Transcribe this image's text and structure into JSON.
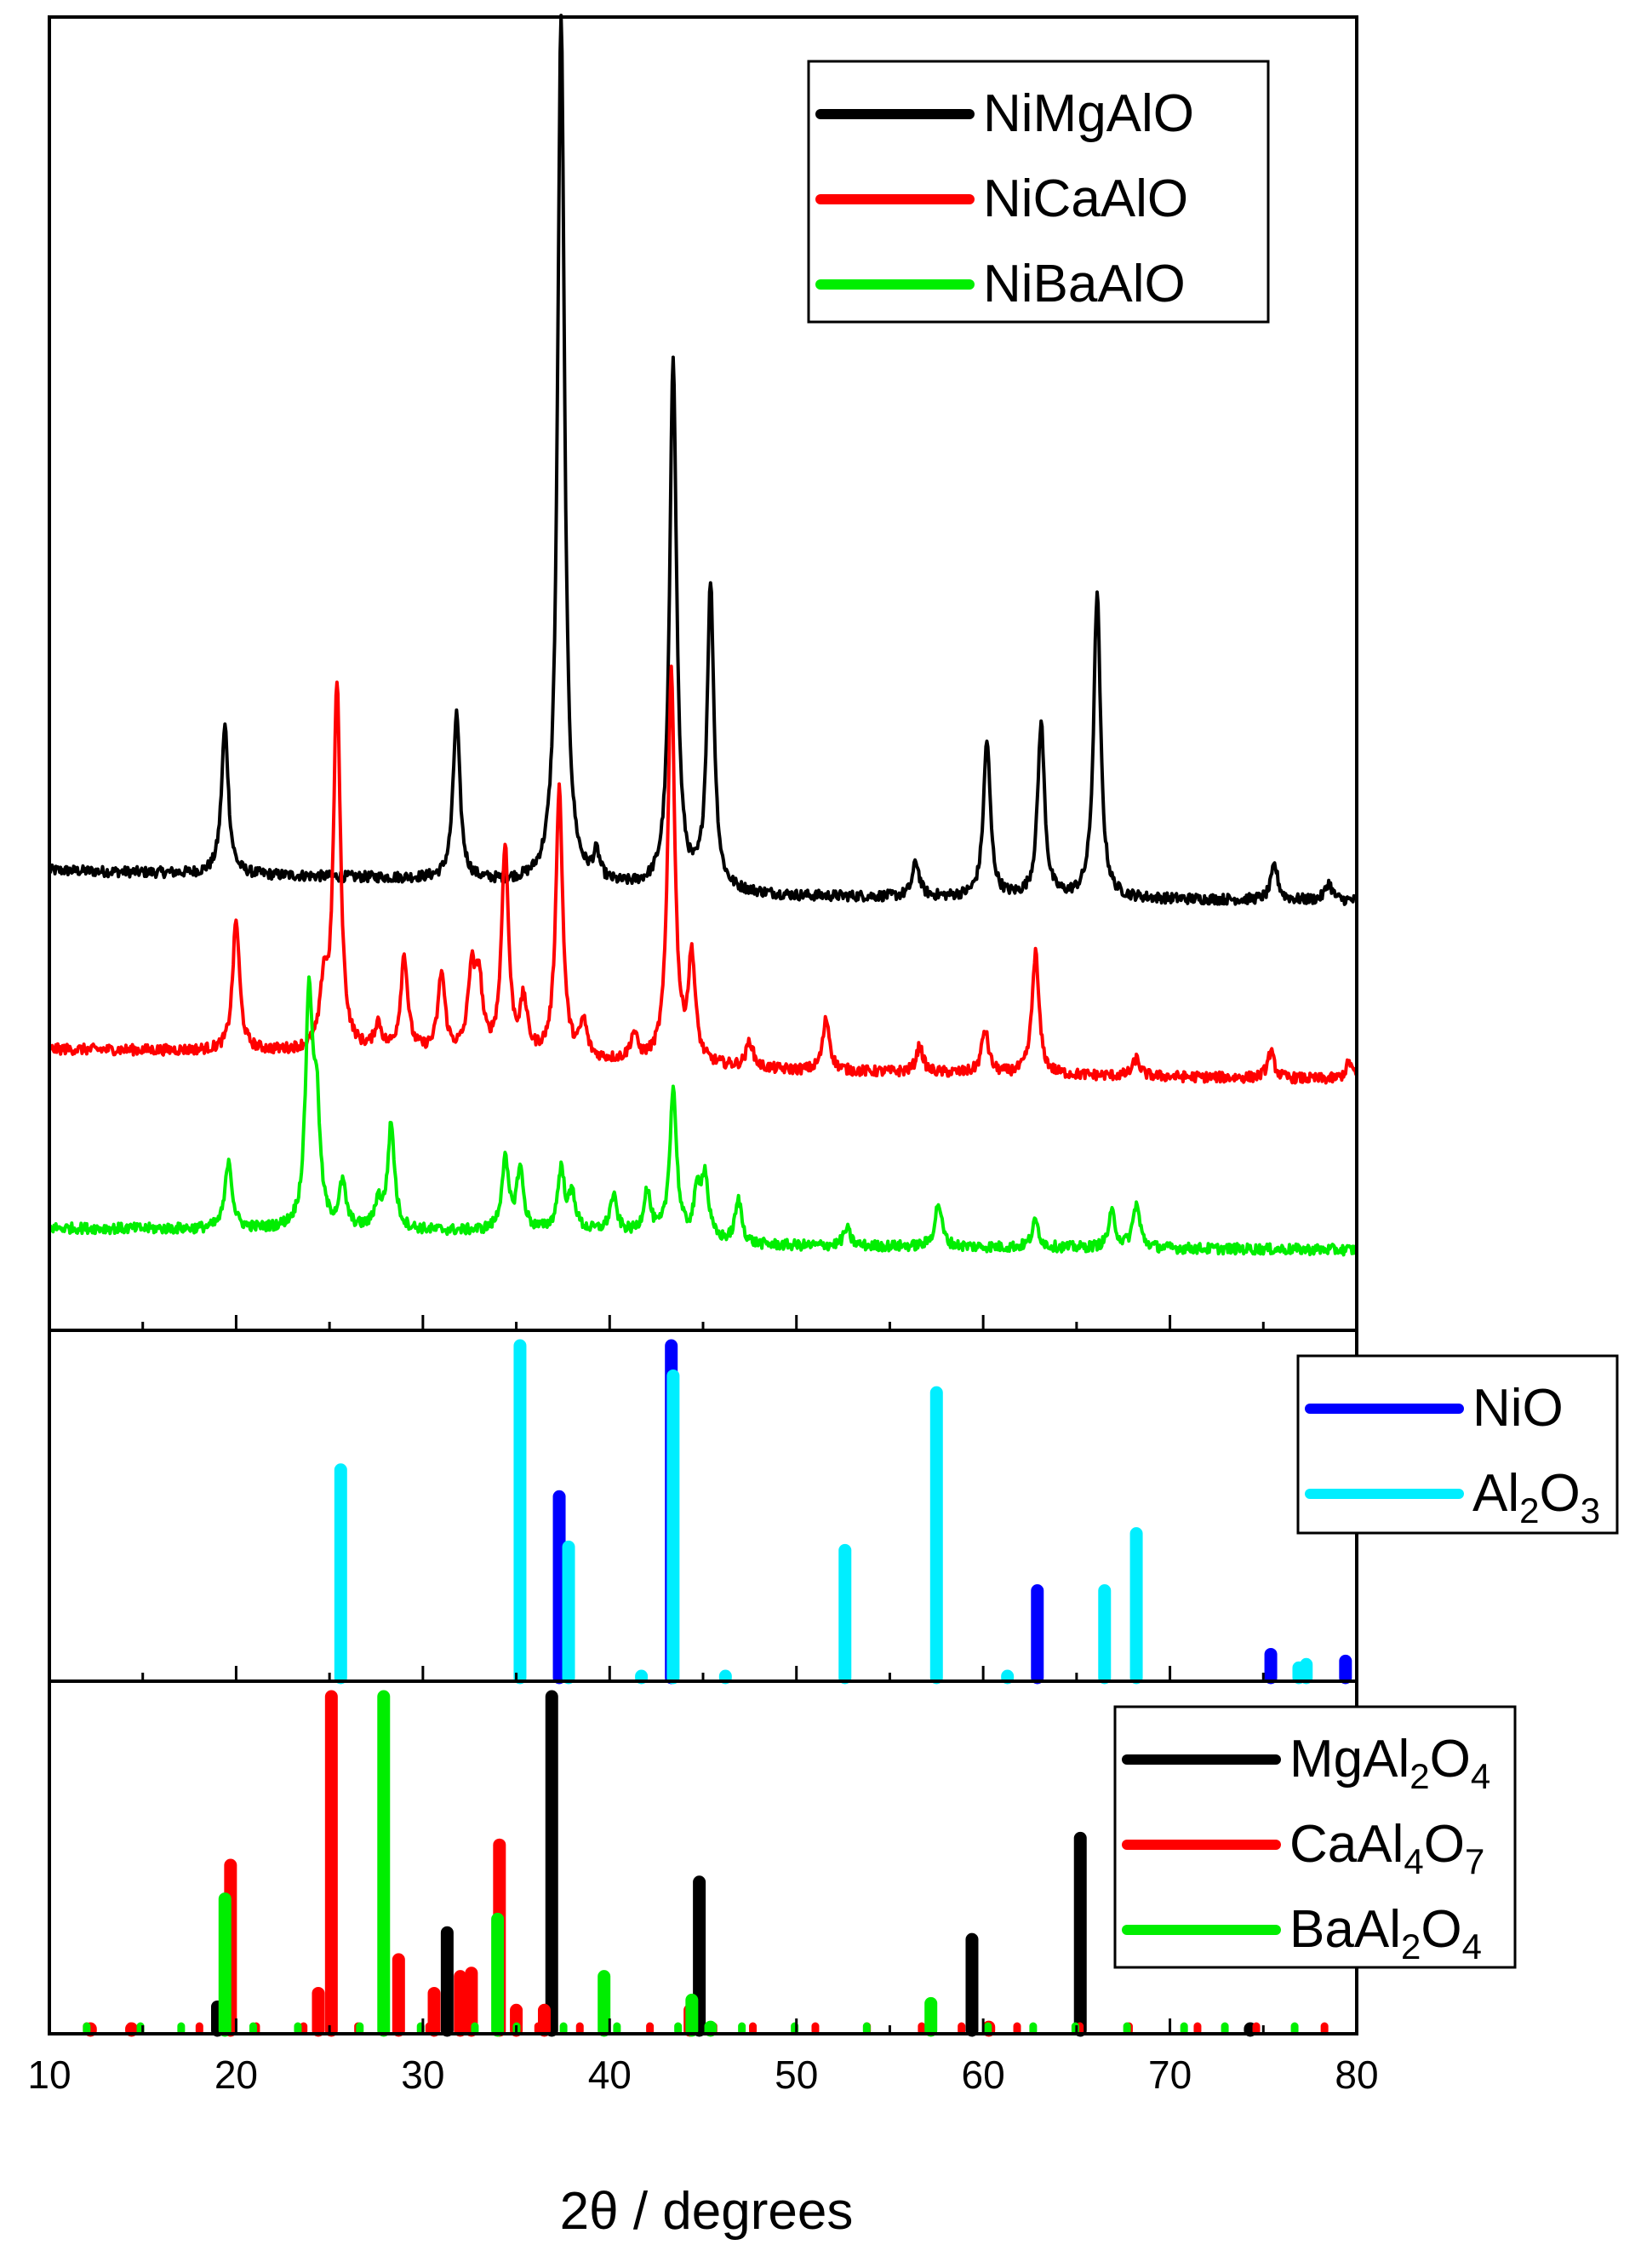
{
  "chart_data": {
    "type": "line",
    "xlabel": "2θ / degrees",
    "xlim": [
      10,
      80
    ],
    "xticks": [
      "10",
      "20",
      "30",
      "40",
      "50",
      "60",
      "70",
      "80"
    ],
    "grid": false,
    "panels": [
      {
        "name": "patterns",
        "legend_position": "top-right",
        "series": [
          {
            "name": "NiMgAlO",
            "color": "#000000",
            "peaks": [
              [
                19.4,
                0.17
              ],
              [
                31.8,
                0.19
              ],
              [
                37.4,
                1.0
              ],
              [
                39.3,
                0.03
              ],
              [
                43.4,
                0.61
              ],
              [
                45.4,
                0.35
              ],
              [
                56.4,
                0.04
              ],
              [
                60.2,
                0.18
              ],
              [
                63.1,
                0.2
              ],
              [
                66.1,
                0.35
              ],
              [
                75.6,
                0.04
              ],
              [
                78.5,
                0.02
              ]
            ],
            "baseline": [
              [
                10,
                0.1
              ],
              [
                30,
                0.09
              ],
              [
                50,
                0.07
              ],
              [
                80,
                0.065
              ]
            ]
          },
          {
            "name": "NiCaAlO",
            "color": "#ff0000",
            "peaks": [
              [
                20.0,
                0.15
              ],
              [
                24.7,
                0.07
              ],
              [
                25.4,
                0.42
              ],
              [
                27.6,
                0.03
              ],
              [
                29.0,
                0.11
              ],
              [
                31.0,
                0.09
              ],
              [
                32.6,
                0.09
              ],
              [
                33.0,
                0.08
              ],
              [
                34.4,
                0.24
              ],
              [
                35.4,
                0.06
              ],
              [
                37.3,
                0.31
              ],
              [
                38.6,
                0.04
              ],
              [
                41.3,
                0.03
              ],
              [
                43.3,
                0.45
              ],
              [
                44.4,
                0.12
              ],
              [
                47.5,
                0.03
              ],
              [
                51.6,
                0.06
              ],
              [
                56.6,
                0.03
              ],
              [
                60.1,
                0.05
              ],
              [
                62.8,
                0.14
              ],
              [
                68.2,
                0.02
              ],
              [
                75.4,
                0.03
              ],
              [
                79.6,
                0.02
              ]
            ],
            "baseline": [
              [
                10,
                0.1
              ],
              [
                30,
                0.095
              ],
              [
                50,
                0.075
              ],
              [
                80,
                0.065
              ]
            ]
          },
          {
            "name": "NiBaAlO",
            "color": "#00ee00",
            "peaks": [
              [
                19.6,
                0.08
              ],
              [
                23.9,
                0.26
              ],
              [
                24.3,
                0.13
              ],
              [
                25.7,
                0.05
              ],
              [
                27.6,
                0.03
              ],
              [
                28.3,
                0.12
              ],
              [
                34.4,
                0.08
              ],
              [
                35.2,
                0.07
              ],
              [
                37.4,
                0.07
              ],
              [
                38.0,
                0.04
              ],
              [
                40.2,
                0.04
              ],
              [
                42.0,
                0.05
              ],
              [
                43.4,
                0.17
              ],
              [
                44.7,
                0.05
              ],
              [
                45.1,
                0.07
              ],
              [
                46.9,
                0.05
              ],
              [
                52.7,
                0.02
              ],
              [
                57.6,
                0.05
              ],
              [
                62.8,
                0.03
              ],
              [
                66.9,
                0.04
              ],
              [
                68.2,
                0.05
              ]
            ],
            "baseline": [
              [
                10,
                0.04
              ],
              [
                40,
                0.035
              ],
              [
                47,
                0.02
              ],
              [
                80,
                0.015
              ]
            ]
          }
        ]
      },
      {
        "name": "reference-1",
        "legend_position": "right",
        "series": [
          {
            "name": "NiO",
            "name_parts": [
              [
                "NiO",
                false
              ]
            ],
            "color": "#0000ff",
            "sticks": [
              [
                37.3,
                0.55
              ],
              [
                43.3,
                1.0
              ],
              [
                62.9,
                0.27
              ],
              [
                75.4,
                0.08
              ],
              [
                79.4,
                0.06
              ]
            ]
          },
          {
            "name": "Al2O3",
            "name_parts": [
              [
                "Al",
                false
              ],
              [
                "2",
                true
              ],
              [
                "O",
                false
              ],
              [
                "3",
                true
              ]
            ],
            "color": "#00eeff",
            "sticks": [
              [
                25.6,
                0.63
              ],
              [
                35.2,
                1.0
              ],
              [
                37.8,
                0.4
              ],
              [
                41.7,
                0.01
              ],
              [
                43.4,
                0.91
              ],
              [
                46.2,
                0.01
              ],
              [
                52.6,
                0.39
              ],
              [
                57.5,
                0.86
              ],
              [
                61.3,
                0.01
              ],
              [
                66.5,
                0.27
              ],
              [
                68.2,
                0.44
              ],
              [
                76.9,
                0.04
              ],
              [
                77.3,
                0.05
              ]
            ]
          }
        ]
      },
      {
        "name": "reference-2",
        "legend_position": "top-right",
        "series": [
          {
            "name": "MgAl2O4",
            "name_parts": [
              [
                "MgAl",
                false
              ],
              [
                "2",
                true
              ],
              [
                "O",
                false
              ],
              [
                "4",
                true
              ]
            ],
            "color": "#000000",
            "sticks": [
              [
                19.0,
                0.08
              ],
              [
                31.3,
                0.3
              ],
              [
                36.9,
                1.0
              ],
              [
                44.8,
                0.45
              ],
              [
                59.4,
                0.28
              ],
              [
                65.2,
                0.58
              ],
              [
                74.3,
                0.01
              ]
            ]
          },
          {
            "name": "CaAl4O7",
            "name_parts": [
              [
                "CaAl",
                false
              ],
              [
                "4",
                true
              ],
              [
                "O",
                false
              ],
              [
                "7",
                true
              ]
            ],
            "color": "#ff0000",
            "sticks": [
              [
                12.2,
                0.01
              ],
              [
                14.4,
                0.01
              ],
              [
                19.7,
                0.5
              ],
              [
                24.4,
                0.12
              ],
              [
                25.1,
                1.0
              ],
              [
                28.7,
                0.22
              ],
              [
                30.6,
                0.12
              ],
              [
                32.0,
                0.17
              ],
              [
                32.6,
                0.18
              ],
              [
                34.1,
                0.56
              ],
              [
                35.0,
                0.07
              ],
              [
                36.5,
                0.07
              ],
              [
                44.3,
                0.07
              ],
              [
                60.3,
                0.02
              ]
            ],
            "grass": true
          },
          {
            "name": "BaAl2O4",
            "name_parts": [
              [
                "BaAl",
                false
              ],
              [
                "2",
                true
              ],
              [
                "O",
                false
              ],
              [
                "4",
                true
              ]
            ],
            "color": "#00ee00",
            "sticks": [
              [
                19.4,
                0.4
              ],
              [
                27.9,
                1.0
              ],
              [
                34.0,
                0.34
              ],
              [
                39.7,
                0.17
              ],
              [
                44.4,
                0.1
              ],
              [
                45.4,
                0.02
              ],
              [
                57.2,
                0.09
              ]
            ],
            "grass": true
          }
        ]
      }
    ]
  }
}
